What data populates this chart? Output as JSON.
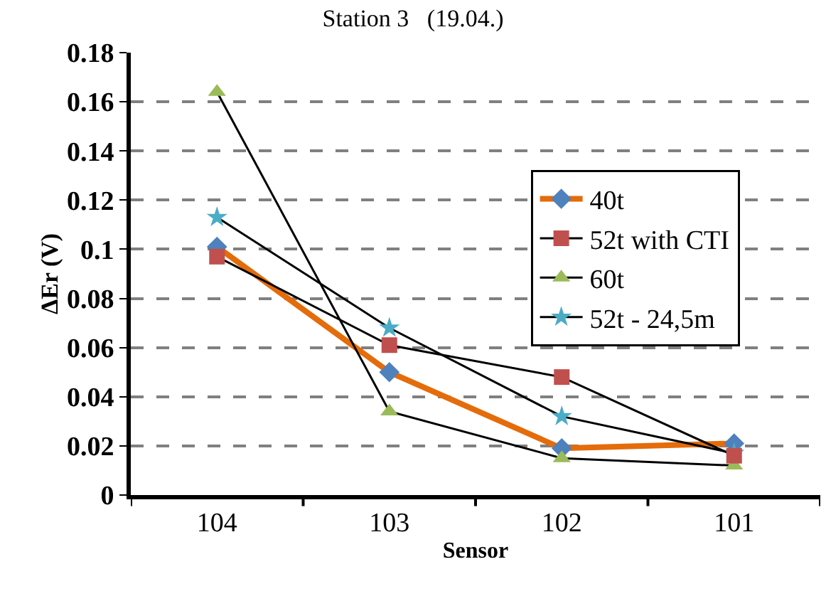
{
  "chart_data": {
    "type": "line",
    "title": "Station 3   (19.04.)",
    "xlabel": "Sensor",
    "ylabel": "ΔEr (V)",
    "categories": [
      "104",
      "103",
      "102",
      "101"
    ],
    "series": [
      {
        "name": "40t",
        "color": "#4f81bd",
        "marker": "diamond",
        "values": [
          0.101,
          0.05,
          0.019,
          0.021
        ]
      },
      {
        "name": "52t with CTI",
        "color": "#c0504d",
        "marker": "square",
        "values": [
          0.097,
          0.061,
          0.048,
          0.016
        ]
      },
      {
        "name": "60t",
        "color": "#9bbb59",
        "marker": "triangle",
        "values": [
          0.164,
          0.034,
          0.015,
          0.012
        ]
      },
      {
        "name": "52t - 24,5m",
        "color": "#4bacc6",
        "marker": "star",
        "values": [
          0.113,
          0.068,
          0.032,
          0.017
        ]
      }
    ],
    "ylim": [
      0,
      0.18
    ],
    "yticks": [
      0,
      0.02,
      0.04,
      0.06,
      0.08,
      0.1,
      0.12,
      0.14,
      0.16,
      0.18
    ],
    "grid": "y",
    "legend": "top right",
    "line_style": "solid"
  }
}
